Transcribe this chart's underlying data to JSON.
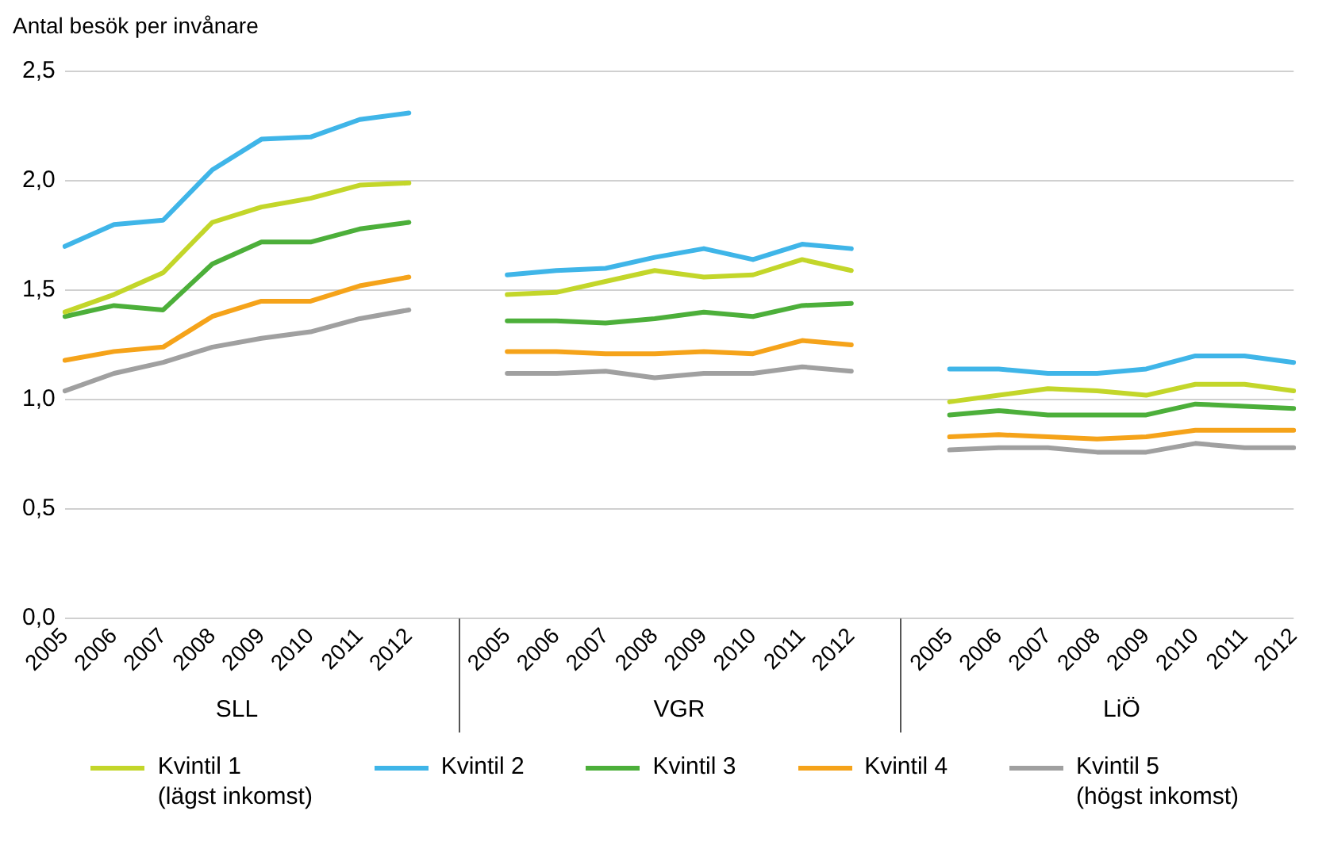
{
  "chart_data": {
    "type": "line",
    "ylabel": "Antal besök per invånare",
    "categories": [
      "2005",
      "2006",
      "2007",
      "2008",
      "2009",
      "2010",
      "2011",
      "2012",
      null,
      "2005",
      "2006",
      "2007",
      "2008",
      "2009",
      "2010",
      "2011",
      "2012",
      null,
      "2005",
      "2006",
      "2007",
      "2008",
      "2009",
      "2010",
      "2011",
      "2012"
    ],
    "annotations": [
      "SLL",
      "VGR",
      "LiÖ"
    ],
    "series": [
      {
        "name": "Kvintil 1\n(lägst inkomst)",
        "color": "#c3d62a",
        "values": [
          1.4,
          1.48,
          1.58,
          1.81,
          1.88,
          1.92,
          1.98,
          1.99,
          null,
          1.48,
          1.49,
          1.54,
          1.59,
          1.56,
          1.57,
          1.64,
          1.59,
          null,
          0.99,
          1.02,
          1.05,
          1.04,
          1.02,
          1.07,
          1.07,
          1.04
        ]
      },
      {
        "name": "Kvintil 2",
        "color": "#3fb5e8",
        "values": [
          1.7,
          1.8,
          1.82,
          2.05,
          2.19,
          2.2,
          2.28,
          2.31,
          null,
          1.57,
          1.59,
          1.6,
          1.65,
          1.69,
          1.64,
          1.71,
          1.69,
          null,
          1.14,
          1.14,
          1.12,
          1.12,
          1.14,
          1.2,
          1.2,
          1.17
        ]
      },
      {
        "name": "Kvintil 3",
        "color": "#4caf3a",
        "values": [
          1.38,
          1.43,
          1.41,
          1.62,
          1.72,
          1.72,
          1.78,
          1.81,
          null,
          1.36,
          1.36,
          1.35,
          1.37,
          1.4,
          1.38,
          1.43,
          1.44,
          null,
          0.93,
          0.95,
          0.93,
          0.93,
          0.93,
          0.98,
          0.97,
          0.96
        ]
      },
      {
        "name": "Kvintil 4",
        "color": "#f5a31a",
        "values": [
          1.18,
          1.22,
          1.24,
          1.38,
          1.45,
          1.45,
          1.52,
          1.56,
          null,
          1.22,
          1.22,
          1.21,
          1.21,
          1.22,
          1.21,
          1.27,
          1.25,
          null,
          0.83,
          0.84,
          0.83,
          0.82,
          0.83,
          0.86,
          0.86,
          0.86
        ]
      },
      {
        "name": "Kvintil 5\n(högst inkomst)",
        "color": "#a0a0a0",
        "values": [
          1.04,
          1.12,
          1.17,
          1.24,
          1.28,
          1.31,
          1.37,
          1.41,
          null,
          1.12,
          1.12,
          1.13,
          1.1,
          1.12,
          1.12,
          1.15,
          1.13,
          null,
          0.77,
          0.78,
          0.78,
          0.76,
          0.76,
          0.8,
          0.78,
          0.78
        ]
      }
    ],
    "ylim": [
      0,
      2.5
    ],
    "yticks": [
      {
        "value": 0,
        "label": "0,0"
      },
      {
        "value": 0.5,
        "label": "0,5"
      },
      {
        "value": 1,
        "label": "1,0"
      },
      {
        "value": 1.5,
        "label": "1,5"
      },
      {
        "value": 2,
        "label": "2,0"
      },
      {
        "value": 2.5,
        "label": "2,5"
      }
    ],
    "grid": "y",
    "legend": "bottom",
    "marker": "none",
    "line_style": "solid"
  }
}
